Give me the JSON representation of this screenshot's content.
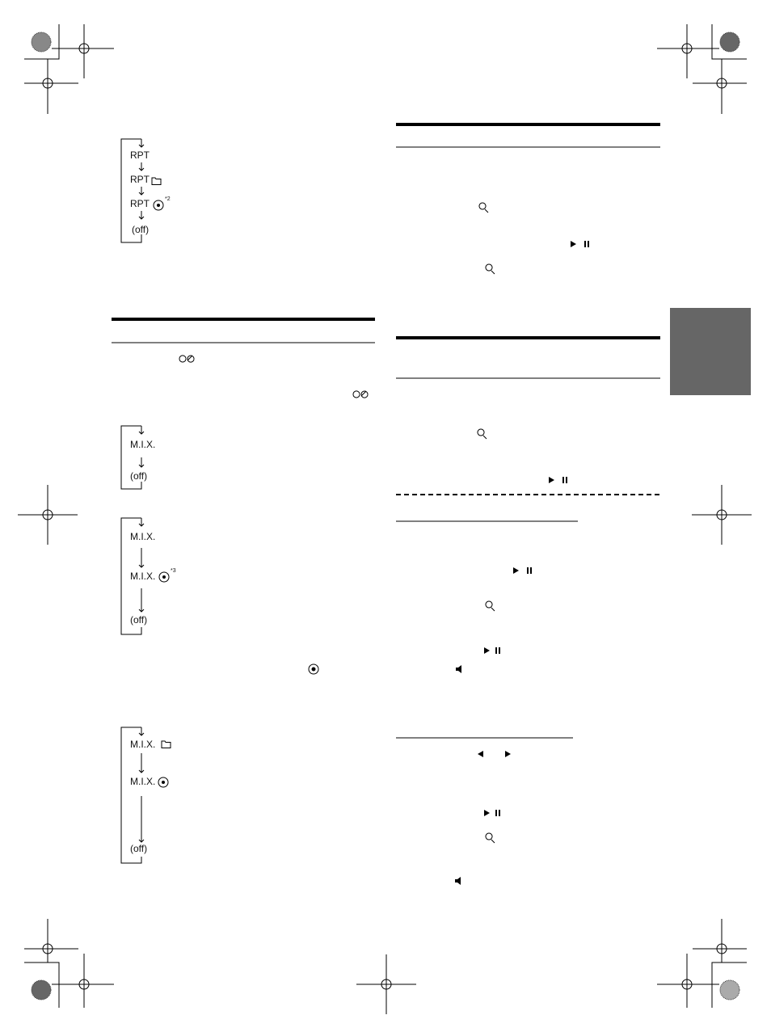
{
  "repeat_flow": {
    "items": [
      "RPT",
      "RPT",
      "RPT",
      "(off)"
    ],
    "note": "*2"
  },
  "mix_flow_1": {
    "items": [
      "M.I.X.",
      "(off)"
    ]
  },
  "mix_flow_2": {
    "items": [
      "M.I.X.",
      "M.I.X.",
      "(off)"
    ],
    "note": "*3"
  },
  "mix_flow_3": {
    "items": [
      "M.I.X.",
      "M.I.X.",
      "(off)"
    ]
  }
}
